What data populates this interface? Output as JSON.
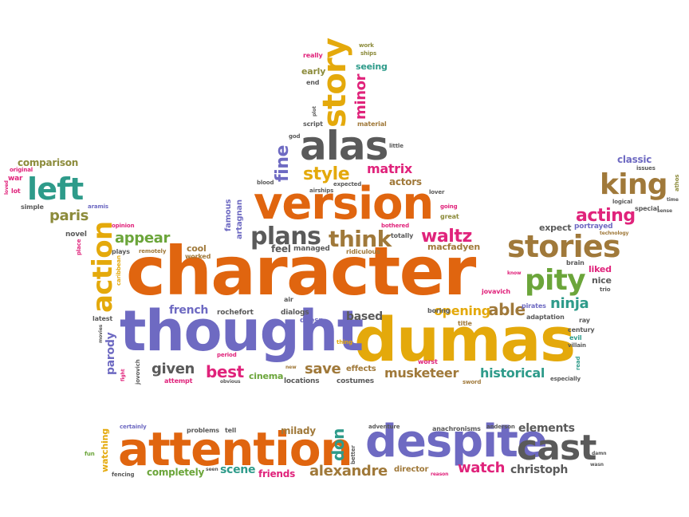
{
  "colors": {
    "c-or": "#e0650f",
    "c-pu": "#6e6ac2",
    "c-yl": "#e4a90b",
    "c-gr": "#5a5a5a",
    "c-gn": "#6ba53a",
    "c-pk": "#e0237b",
    "c-br": "#a0793a",
    "c-tl": "#2e9b8a",
    "c-ol": "#8c8b3b"
  },
  "words": [
    {
      "t": "character"
    },
    {
      "t": "dumas"
    },
    {
      "t": "thought"
    },
    {
      "t": "version"
    },
    {
      "t": "alas"
    },
    {
      "t": "attention"
    },
    {
      "t": "despite"
    },
    {
      "t": "cast"
    },
    {
      "t": "stories"
    },
    {
      "t": "story"
    },
    {
      "t": "action"
    },
    {
      "t": "left"
    },
    {
      "t": "king"
    },
    {
      "t": "pity"
    },
    {
      "t": "plans"
    },
    {
      "t": "think"
    },
    {
      "t": "waltz"
    },
    {
      "t": "acting"
    },
    {
      "t": "style"
    },
    {
      "t": "matrix"
    },
    {
      "t": "fine"
    },
    {
      "t": "minor"
    },
    {
      "t": "paris"
    },
    {
      "t": "appear"
    },
    {
      "t": "ninja"
    },
    {
      "t": "able"
    },
    {
      "t": "opening"
    },
    {
      "t": "musketeer"
    },
    {
      "t": "historical"
    },
    {
      "t": "save"
    },
    {
      "t": "best"
    },
    {
      "t": "given"
    },
    {
      "t": "parody"
    },
    {
      "t": "french"
    },
    {
      "t": "based"
    },
    {
      "t": "alexandre"
    },
    {
      "t": "watch"
    },
    {
      "t": "christoph"
    },
    {
      "t": "elements"
    },
    {
      "t": "completely"
    },
    {
      "t": "scene"
    },
    {
      "t": "friends"
    },
    {
      "t": "don"
    },
    {
      "t": "director"
    },
    {
      "t": "watching"
    },
    {
      "t": "milady"
    },
    {
      "t": "actors"
    },
    {
      "t": "macfadyen"
    },
    {
      "t": "comparison"
    },
    {
      "t": "classic"
    },
    {
      "t": "liked"
    },
    {
      "t": "nice"
    },
    {
      "t": "expect"
    },
    {
      "t": "portrayed"
    },
    {
      "t": "cool"
    },
    {
      "t": "worked"
    },
    {
      "t": "feel"
    },
    {
      "t": "managed"
    },
    {
      "t": "famous"
    },
    {
      "t": "artagnan"
    },
    {
      "t": "rochefort"
    },
    {
      "t": "dialogs"
    },
    {
      "t": "doesn"
    },
    {
      "t": "cinema"
    },
    {
      "t": "effects"
    },
    {
      "t": "costumes"
    },
    {
      "t": "locations"
    },
    {
      "t": "worst"
    },
    {
      "t": "boring"
    },
    {
      "t": "title"
    },
    {
      "t": "jovavich"
    },
    {
      "t": "pirates"
    },
    {
      "t": "adaptation"
    },
    {
      "t": "century"
    },
    {
      "t": "evil"
    },
    {
      "t": "villain"
    },
    {
      "t": "especially"
    },
    {
      "t": "sword"
    },
    {
      "t": "ridiculous"
    },
    {
      "t": "totally"
    },
    {
      "t": "bothered"
    },
    {
      "t": "great"
    },
    {
      "t": "going"
    },
    {
      "t": "lover"
    },
    {
      "t": "blood"
    },
    {
      "t": "airships"
    },
    {
      "t": "expected"
    },
    {
      "t": "little"
    },
    {
      "t": "material"
    },
    {
      "t": "script"
    },
    {
      "t": "god"
    },
    {
      "t": "plot"
    },
    {
      "t": "end"
    },
    {
      "t": "early"
    },
    {
      "t": "really"
    },
    {
      "t": "seeing"
    },
    {
      "t": "work"
    },
    {
      "t": "ships"
    },
    {
      "t": "original"
    },
    {
      "t": "war"
    },
    {
      "t": "lot"
    },
    {
      "t": "loved"
    },
    {
      "t": "simple"
    },
    {
      "t": "aramis"
    },
    {
      "t": "opinion"
    },
    {
      "t": "novel"
    },
    {
      "t": "place"
    },
    {
      "t": "plays"
    },
    {
      "t": "remotely"
    },
    {
      "t": "caribbean"
    },
    {
      "t": "latest"
    },
    {
      "t": "movies"
    },
    {
      "t": "air"
    },
    {
      "t": "period"
    },
    {
      "t": "fight"
    },
    {
      "t": "jovovich"
    },
    {
      "t": "attempt"
    },
    {
      "t": "obvious"
    },
    {
      "t": "new"
    },
    {
      "t": "thing"
    },
    {
      "t": "read"
    },
    {
      "t": "ray"
    },
    {
      "t": "trio"
    },
    {
      "t": "brain"
    },
    {
      "t": "know"
    },
    {
      "t": "technology"
    },
    {
      "t": "special"
    },
    {
      "t": "logical"
    },
    {
      "t": "issues"
    },
    {
      "t": "athos"
    },
    {
      "t": "time"
    },
    {
      "t": "sense"
    },
    {
      "t": "certainly"
    },
    {
      "t": "problems"
    },
    {
      "t": "tell"
    },
    {
      "t": "adventure"
    },
    {
      "t": "anachronisms"
    },
    {
      "t": "anderson"
    },
    {
      "t": "damn"
    },
    {
      "t": "wasn"
    },
    {
      "t": "fun"
    },
    {
      "t": "fencing"
    },
    {
      "t": "seen"
    },
    {
      "t": "better"
    },
    {
      "t": "reason"
    }
  ]
}
